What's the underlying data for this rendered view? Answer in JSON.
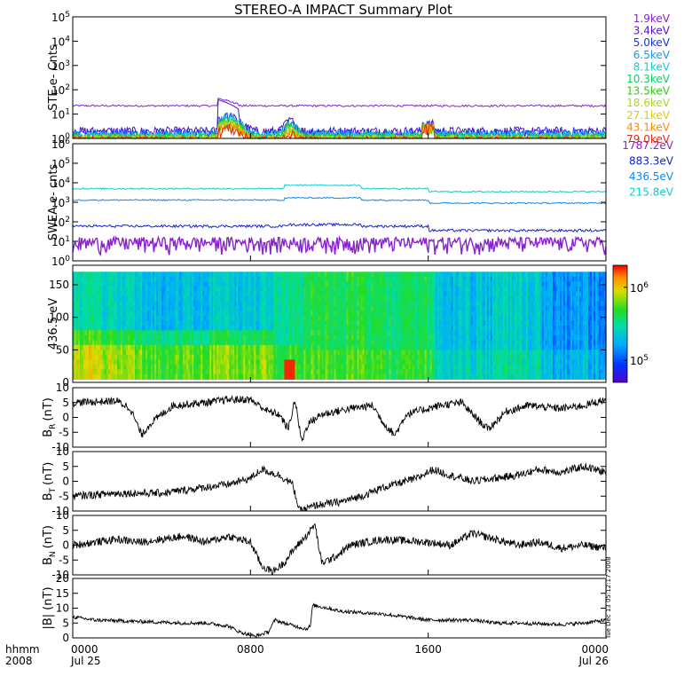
{
  "chart_data": {
    "type": "line",
    "title": "STEREO-A IMPACT Summary Plot",
    "x_axis": {
      "row1_label": "hhmm",
      "row2_label": "2008",
      "range_hours": [
        0,
        24
      ],
      "ticks": [
        {
          "hour": 0,
          "time": "0000",
          "date": "Jul 25"
        },
        {
          "hour": 8,
          "time": "0800",
          "date": ""
        },
        {
          "hour": 16,
          "time": "1600",
          "date": ""
        },
        {
          "hour": 24,
          "time": "0000",
          "date": "Jul 26"
        }
      ]
    },
    "timestamp": "Tue Dec 13 05:12:17 2008",
    "panels": [
      {
        "id": "ste",
        "ylabel": "STE e- Cnts",
        "scale": "log",
        "ylim": [
          1,
          100000
        ],
        "tick_labels": [
          {
            "base": "10",
            "exp": "0",
            "value": 1
          },
          {
            "base": "10",
            "exp": "1",
            "value": 10
          },
          {
            "base": "10",
            "exp": "2",
            "value": 100
          },
          {
            "base": "10",
            "exp": "3",
            "value": 1000
          },
          {
            "base": "10",
            "exp": "4",
            "value": 10000
          },
          {
            "base": "10",
            "exp": "5",
            "value": 100000
          }
        ],
        "series": [
          {
            "name": "1.9keV",
            "color": "#8822cc"
          },
          {
            "name": "3.4keV",
            "color": "#5511cc"
          },
          {
            "name": "5.0keV",
            "color": "#1133ee"
          },
          {
            "name": "6.5keV",
            "color": "#1199ee"
          },
          {
            "name": "8.1keV",
            "color": "#11cccc"
          },
          {
            "name": "10.3keV",
            "color": "#11cc66"
          },
          {
            "name": "13.5keV",
            "color": "#33cc11"
          },
          {
            "name": "18.6keV",
            "color": "#aadd11"
          },
          {
            "name": "27.1keV",
            "color": "#ddcc00"
          },
          {
            "name": "43.1keV",
            "color": "#ff8800"
          },
          {
            "name": "79.0keV",
            "color": "#ee2211"
          }
        ]
      },
      {
        "id": "swea",
        "ylabel": "SWEA e- cnts",
        "scale": "log",
        "ylim": [
          1,
          1000000
        ],
        "tick_labels": [
          {
            "base": "10",
            "exp": "0",
            "value": 1
          },
          {
            "base": "10",
            "exp": "1",
            "value": 10
          },
          {
            "base": "10",
            "exp": "2",
            "value": 100
          },
          {
            "base": "10",
            "exp": "3",
            "value": 1000
          },
          {
            "base": "10",
            "exp": "4",
            "value": 10000
          },
          {
            "base": "10",
            "exp": "5",
            "value": 100000
          },
          {
            "base": "10",
            "exp": "6",
            "value": 1000000
          }
        ],
        "series": [
          {
            "name": "1787.2eV",
            "color": "#8822cc"
          },
          {
            "name": "883.3eV",
            "color": "#1122cc"
          },
          {
            "name": "436.5eV",
            "color": "#1188ee"
          },
          {
            "name": "215.8eV",
            "color": "#11cccc"
          }
        ]
      },
      {
        "id": "pad",
        "type": "heatmap",
        "ylabel": "436.5 eV",
        "ylim": [
          0,
          180
        ],
        "yticks": [
          0,
          50,
          100,
          150
        ],
        "colorbar": {
          "scale": "log",
          "range": [
            50000,
            2000000
          ],
          "tick_labels": [
            {
              "base": "10",
              "exp": "5",
              "value": 100000
            },
            {
              "base": "10",
              "exp": "6",
              "value": 1000000
            }
          ]
        }
      },
      {
        "id": "br",
        "ylabel_main": "B",
        "ylabel_sub": "R",
        "ylabel_unit": "(nT)",
        "ylim": [
          -10,
          10
        ],
        "yticks": [
          -10,
          -5,
          0,
          5,
          10
        ],
        "profile": [
          [
            0,
            5
          ],
          [
            2,
            5.5
          ],
          [
            2.6,
            3
          ],
          [
            3.1,
            -6
          ],
          [
            3.5,
            -2
          ],
          [
            4.5,
            4
          ],
          [
            6,
            5
          ],
          [
            7,
            6
          ],
          [
            8,
            6
          ],
          [
            8.8,
            2
          ],
          [
            9.3,
            1
          ],
          [
            9.7,
            -4
          ],
          [
            10,
            6
          ],
          [
            10.3,
            -8
          ],
          [
            10.6,
            -2
          ],
          [
            11.2,
            1
          ],
          [
            12.5,
            3
          ],
          [
            13.5,
            4
          ],
          [
            14,
            -2
          ],
          [
            14.5,
            -6
          ],
          [
            15,
            1
          ],
          [
            16.5,
            4
          ],
          [
            17.5,
            5
          ],
          [
            18,
            1
          ],
          [
            18.7,
            -4
          ],
          [
            19.5,
            2
          ],
          [
            20.5,
            4
          ],
          [
            22,
            3
          ],
          [
            23,
            4
          ],
          [
            24,
            6
          ]
        ]
      },
      {
        "id": "bt",
        "ylabel_main": "B",
        "ylabel_sub": "T",
        "ylabel_unit": "(nT)",
        "ylim": [
          -10,
          10
        ],
        "yticks": [
          -10,
          -5,
          0,
          5,
          10
        ],
        "profile": [
          [
            0,
            -5
          ],
          [
            2,
            -4
          ],
          [
            4,
            -4
          ],
          [
            5,
            -3
          ],
          [
            6,
            -2
          ],
          [
            7,
            -1
          ],
          [
            8,
            1
          ],
          [
            8.5,
            4
          ],
          [
            9.3,
            2
          ],
          [
            9.9,
            -1
          ],
          [
            10.2,
            -10
          ],
          [
            11,
            -8
          ],
          [
            12,
            -7
          ],
          [
            13,
            -5
          ],
          [
            14,
            -2
          ],
          [
            15.5,
            1
          ],
          [
            16.2,
            4
          ],
          [
            17,
            2
          ],
          [
            18,
            0
          ],
          [
            19,
            1
          ],
          [
            20,
            2
          ],
          [
            21,
            4
          ],
          [
            22,
            3
          ],
          [
            23,
            5
          ],
          [
            24,
            3
          ]
        ]
      },
      {
        "id": "bn",
        "ylabel_main": "B",
        "ylabel_sub": "N",
        "ylabel_unit": "(nT)",
        "ylim": [
          -10,
          10
        ],
        "yticks": [
          -10,
          -5,
          0,
          5,
          10
        ],
        "profile": [
          [
            0,
            0
          ],
          [
            1,
            1
          ],
          [
            2,
            2
          ],
          [
            3,
            1
          ],
          [
            4,
            2
          ],
          [
            5,
            3
          ],
          [
            6,
            1
          ],
          [
            7,
            3
          ],
          [
            8,
            1
          ],
          [
            8.5,
            -7
          ],
          [
            9,
            -9
          ],
          [
            9.5,
            -6
          ],
          [
            10,
            -1
          ],
          [
            10.5,
            3
          ],
          [
            10.9,
            7
          ],
          [
            11.2,
            -6
          ],
          [
            11.8,
            -4
          ],
          [
            12.5,
            0
          ],
          [
            14,
            2
          ],
          [
            16,
            1
          ],
          [
            17,
            0
          ],
          [
            18,
            4
          ],
          [
            19,
            2
          ],
          [
            20,
            0
          ],
          [
            21,
            1
          ],
          [
            22,
            -1
          ],
          [
            23,
            0
          ],
          [
            24,
            -1
          ]
        ]
      },
      {
        "id": "bmag",
        "ylabel_main": "|B|",
        "ylabel_sub": "",
        "ylabel_unit": "(nT)",
        "ylim": [
          0,
          20
        ],
        "yticks": [
          0,
          5,
          10,
          15,
          20
        ],
        "profile": [
          [
            0,
            7
          ],
          [
            1,
            6
          ],
          [
            3,
            5.5
          ],
          [
            5,
            5
          ],
          [
            6,
            5
          ],
          [
            7,
            4
          ],
          [
            7.5,
            2
          ],
          [
            8.2,
            0.5
          ],
          [
            8.8,
            2
          ],
          [
            9.1,
            6
          ],
          [
            9.5,
            5
          ],
          [
            10.5,
            3
          ],
          [
            10.7,
            4
          ],
          [
            10.8,
            11
          ],
          [
            11.5,
            10
          ],
          [
            12,
            9
          ],
          [
            13,
            8.5
          ],
          [
            14,
            8
          ],
          [
            15,
            7
          ],
          [
            16,
            6
          ],
          [
            18,
            6
          ],
          [
            19,
            5
          ],
          [
            20,
            5
          ],
          [
            22,
            4.5
          ],
          [
            23,
            5
          ],
          [
            24,
            6
          ]
        ]
      }
    ]
  }
}
